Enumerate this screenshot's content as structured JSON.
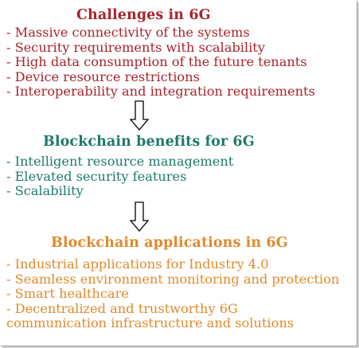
{
  "challenges": {
    "title": "Challenges in 6G",
    "items": [
      "- Massive connectivity of the systems",
      "- Security requirements with scalability",
      "- High data consumption of the future tenants",
      "- Device resource restrictions",
      "- Interoperability and integration requirements"
    ],
    "color": "#a8242c"
  },
  "benefits": {
    "title": "Blockchain  benefits for 6G",
    "items": [
      "-  Intelligent resource management",
      "-  Elevated security features",
      "-  Scalability"
    ],
    "color": "#1f7a6a"
  },
  "applications": {
    "title": "Blockchain applications in 6G",
    "items": [
      "- Industrial applications for Industry 4.0",
      "-  Seamless environment monitoring and protection",
      "- Smart healthcare",
      "-  Decentralized  and  trustworthy  6G",
      "communication infrastructure and solutions"
    ],
    "color": "#e08a2c"
  },
  "arrows": [
    {
      "icon": "down-arrow-icon"
    },
    {
      "icon": "down-arrow-icon"
    }
  ]
}
